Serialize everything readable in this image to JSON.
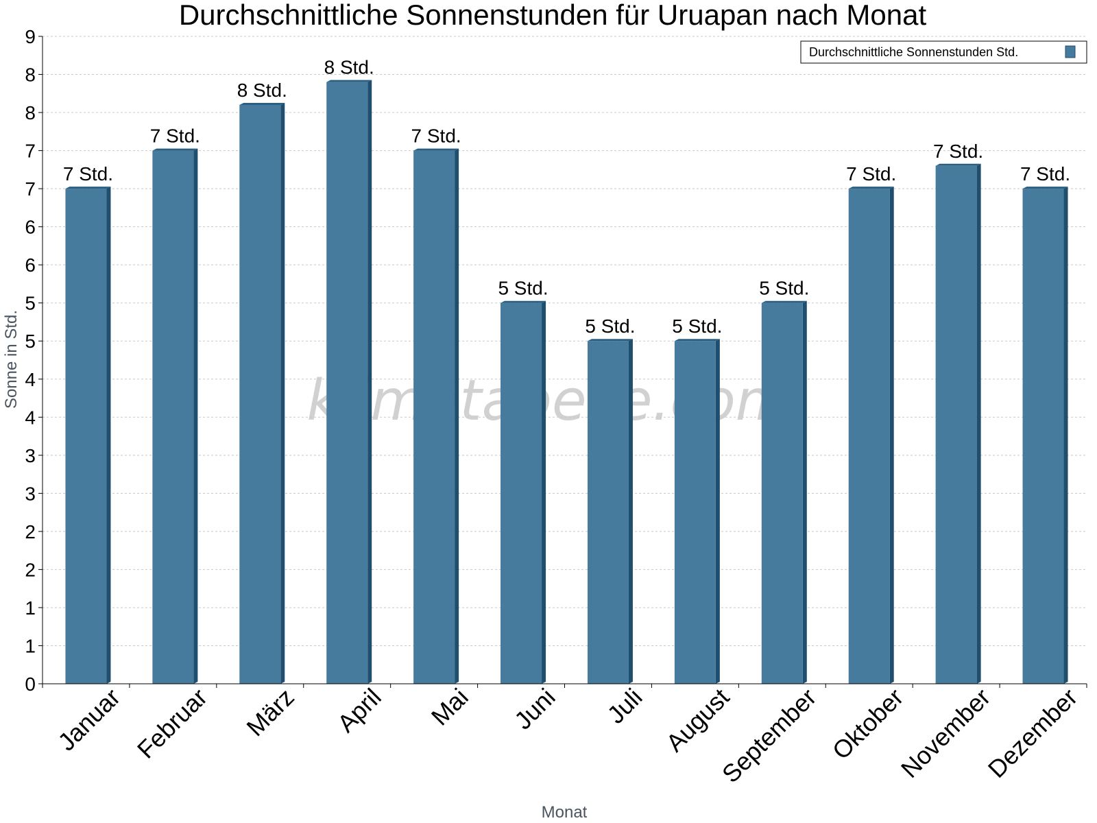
{
  "chart_data": {
    "type": "bar",
    "title": "Durchschnittliche Sonnenstunden für Uruapan nach Monat",
    "xlabel": "Monat",
    "ylabel": "Sonne in Std.",
    "categories": [
      "Januar",
      "Februar",
      "März",
      "April",
      "Mai",
      "Juni",
      "Juli",
      "August",
      "September",
      "Oktober",
      "November",
      "Dezember"
    ],
    "series": [
      {
        "name": "Durchschnittliche Sonnenstunden Std.",
        "values": [
          6.5,
          7.0,
          7.6,
          7.9,
          7.0,
          5.0,
          4.5,
          4.5,
          5.0,
          6.5,
          6.8,
          6.5
        ],
        "data_labels": [
          "7 Std.",
          "7 Std.",
          "8 Std.",
          "8 Std.",
          "7 Std.",
          "5 Std.",
          "5 Std.",
          "5 Std.",
          "5 Std.",
          "7 Std.",
          "7 Std.",
          "7 Std."
        ]
      }
    ],
    "ylim": [
      0,
      8.5
    ],
    "y_tick_values": [
      0,
      0.5,
      1,
      1.5,
      2,
      2.5,
      3,
      3.5,
      4,
      4.5,
      5,
      5.5,
      6,
      6.5,
      7,
      7.5,
      8,
      8.5
    ],
    "y_tick_labels": [
      "0",
      "1",
      "1",
      "2",
      "2",
      "3",
      "3",
      "4",
      "4",
      "5",
      "5",
      "6",
      "6",
      "7",
      "7",
      "8",
      "8",
      "9"
    ],
    "grid": true,
    "legend_position": "top-right",
    "colors": {
      "bar": "#467b9d",
      "bar_side": "#1f4e6e",
      "bar_top": "#2b5f82"
    },
    "watermark": "klimatabelle.com"
  }
}
